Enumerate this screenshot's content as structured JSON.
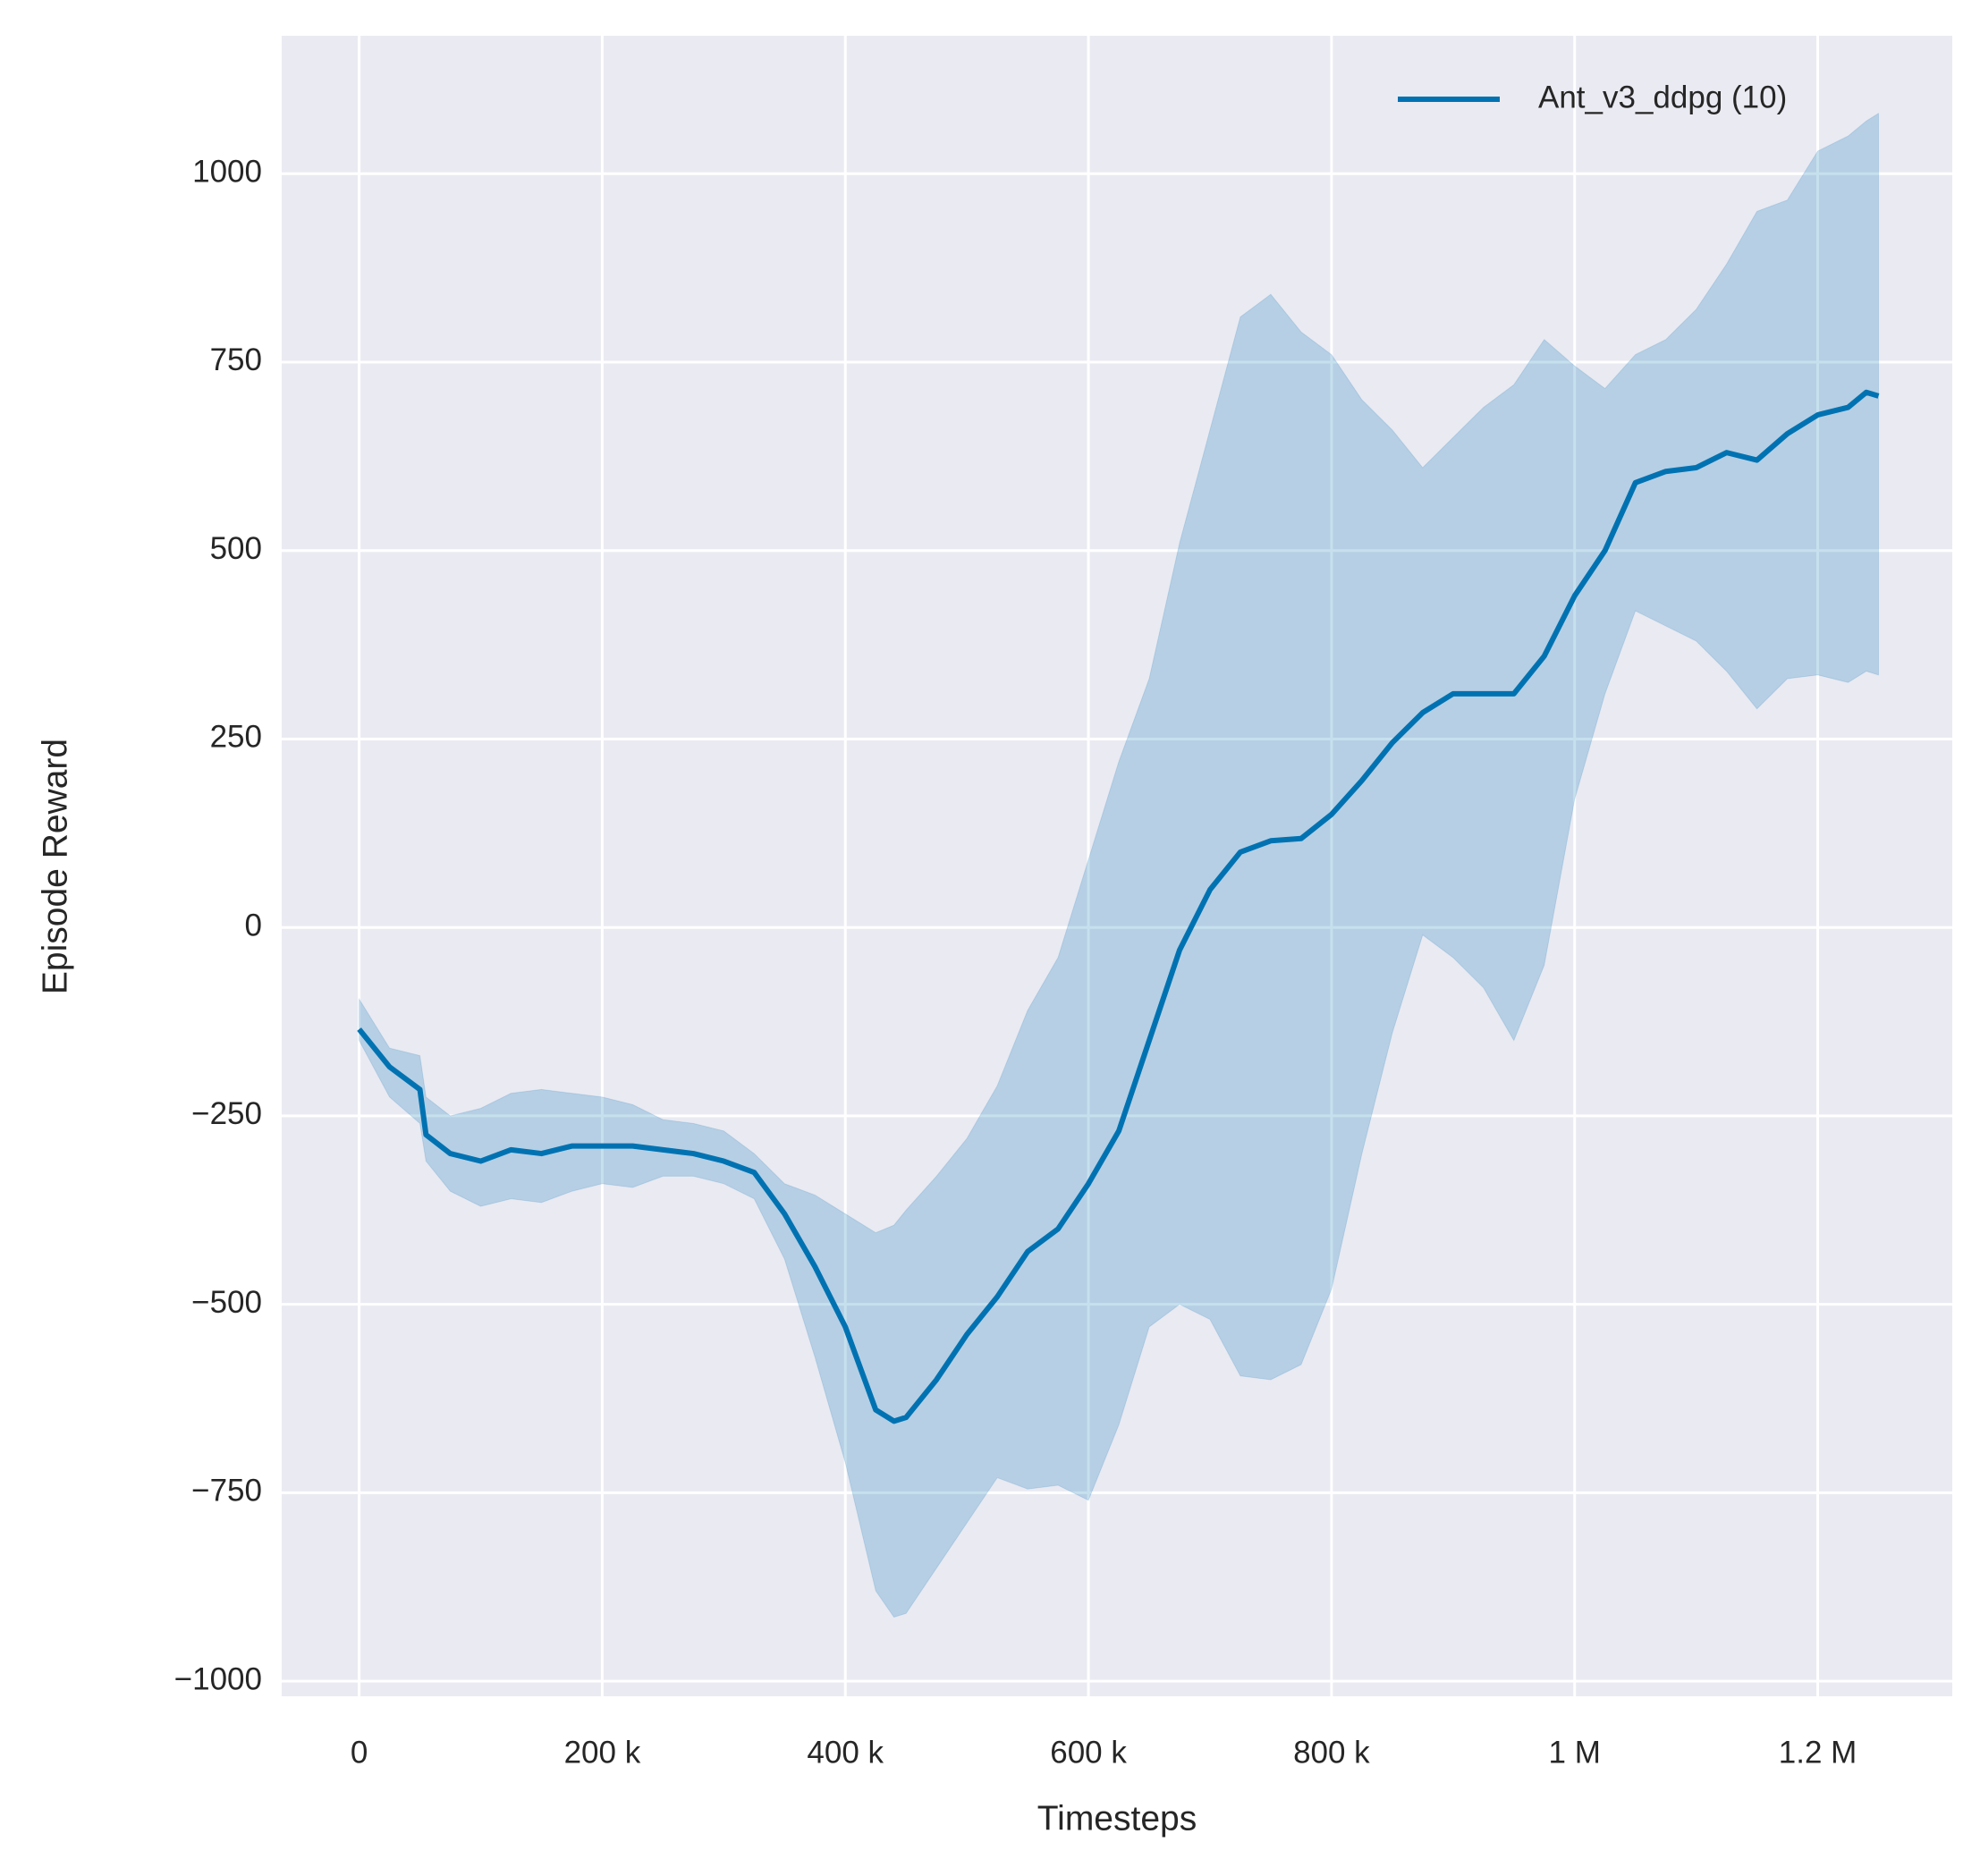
{
  "chart_data": {
    "type": "line",
    "xlabel": "Timesteps",
    "ylabel": "Episode Reward",
    "x": [
      0,
      25000,
      50000,
      55000,
      75000,
      100000,
      125000,
      150000,
      175000,
      200000,
      225000,
      250000,
      275000,
      300000,
      325000,
      350000,
      375000,
      400000,
      425000,
      440000,
      450000,
      475000,
      500000,
      525000,
      550000,
      575000,
      600000,
      625000,
      650000,
      675000,
      700000,
      725000,
      750000,
      775000,
      800000,
      825000,
      850000,
      875000,
      900000,
      925000,
      950000,
      975000,
      1000000,
      1025000,
      1050000,
      1075000,
      1100000,
      1125000,
      1150000,
      1175000,
      1200000,
      1225000,
      1240000,
      1250000
    ],
    "series": [
      {
        "name": "Ant_v3_ddpg (10)",
        "color": "#0072b2",
        "values": [
          -135,
          -185,
          -215,
          -275,
          -300,
          -310,
          -295,
          -300,
          -290,
          -290,
          -290,
          -295,
          -300,
          -310,
          -325,
          -380,
          -450,
          -530,
          -640,
          -655,
          -650,
          -600,
          -540,
          -490,
          -430,
          -400,
          -340,
          -270,
          -150,
          -30,
          50,
          100,
          115,
          118,
          150,
          195,
          245,
          285,
          310,
          310,
          310,
          360,
          440,
          500,
          590,
          605,
          610,
          630,
          620,
          655,
          680,
          690,
          710,
          705
        ],
        "upper": [
          -95,
          -160,
          -170,
          -225,
          -250,
          -240,
          -220,
          -215,
          -220,
          -225,
          -235,
          -255,
          -260,
          -270,
          -300,
          -340,
          -355,
          -380,
          -405,
          -395,
          -375,
          -330,
          -280,
          -210,
          -110,
          -40,
          90,
          220,
          330,
          510,
          660,
          810,
          840,
          790,
          760,
          700,
          660,
          610,
          650,
          690,
          720,
          780,
          745,
          715,
          760,
          780,
          820,
          880,
          950,
          965,
          1030,
          1050,
          1070,
          1080
        ],
        "lower": [
          -150,
          -225,
          -260,
          -310,
          -350,
          -370,
          -360,
          -365,
          -350,
          -340,
          -345,
          -330,
          -330,
          -340,
          -360,
          -440,
          -570,
          -710,
          -880,
          -915,
          -910,
          -850,
          -790,
          -730,
          -745,
          -740,
          -760,
          -660,
          -530,
          -500,
          -520,
          -595,
          -600,
          -580,
          -480,
          -300,
          -140,
          -10,
          -40,
          -80,
          -150,
          -50,
          170,
          310,
          420,
          400,
          380,
          340,
          290,
          330,
          335,
          325,
          340,
          335
        ]
      }
    ],
    "xlim": [
      -63700,
      1310700
    ],
    "ylim": [
      -1020,
      1183
    ],
    "xticks": [
      0,
      {
        "value": 200000,
        "label": "200 k"
      },
      {
        "value": 400000,
        "label": "400 k"
      },
      {
        "value": 600000,
        "label": "600 k"
      },
      {
        "value": 800000,
        "label": "800 k"
      },
      {
        "value": 1000000,
        "label": "1 M"
      },
      {
        "value": 1200000,
        "label": "1.2 M"
      }
    ],
    "yticks": [
      {
        "value": -1000,
        "label": "−1000"
      },
      {
        "value": -750,
        "label": "−750"
      },
      {
        "value": -500,
        "label": "−500"
      },
      {
        "value": -250,
        "label": "−250"
      },
      0,
      250,
      500,
      750,
      1000
    ],
    "grid": true,
    "legend": "upper right"
  }
}
